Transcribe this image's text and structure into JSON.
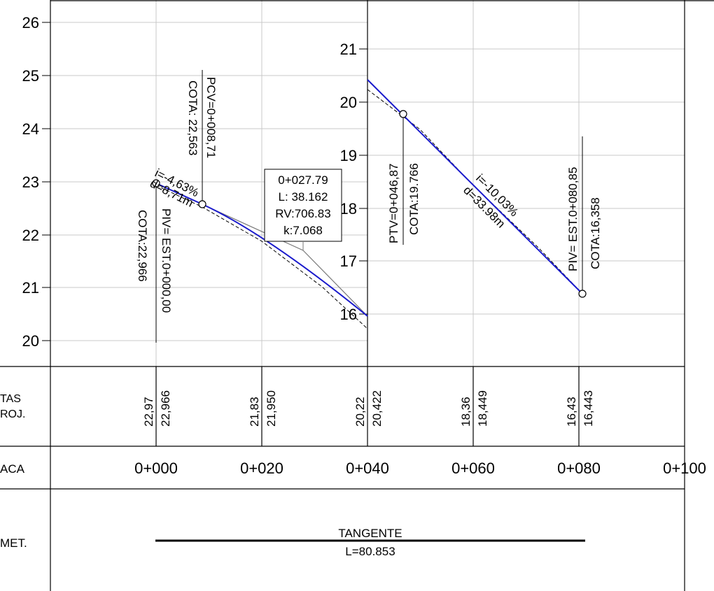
{
  "left_axis": {
    "ticks": [
      "26",
      "25",
      "24",
      "23",
      "22",
      "21",
      "20"
    ]
  },
  "right_axis": {
    "ticks": [
      "21",
      "20",
      "19",
      "18",
      "17",
      "16"
    ]
  },
  "annotations": {
    "pcv_station": "PCV=0+008,71",
    "pcv_cota": "COTA: 22,563",
    "piv_start": "PIV= EST.0+000,00",
    "piv_start_cota": "COTA:22,966",
    "grade_1": "i=-4,63%",
    "dist_1": "d=8,71m",
    "curve_station": "0+027.79",
    "curve_length": "L: 38.162",
    "curve_rv": "RV:706.83",
    "curve_k": "k:7.068",
    "ptv_station": "PTV=0+046,87",
    "ptv_cota": "COTA:19.766",
    "grade_2": "i=-10,03%",
    "dist_2": "d=33.98m",
    "piv_end": "PIV= EST.0+080,85",
    "piv_end_cota": "COTA:16,358"
  },
  "row_labels": {
    "cotas": "TAS",
    "cotas_line2": "ROJ.",
    "estaca": "ACA",
    "alinhamento": "MET."
  },
  "elevations": [
    {
      "terrain": "22,97",
      "project": "22,966"
    },
    {
      "terrain": "21,83",
      "project": "21,950"
    },
    {
      "terrain": "20,22",
      "project": "20,422"
    },
    {
      "terrain": "18,36",
      "project": "18,449"
    },
    {
      "terrain": "16,43",
      "project": "16,443"
    }
  ],
  "stations": [
    "0+000",
    "0+020",
    "0+040",
    "0+060",
    "0+080",
    "0+100"
  ],
  "alignment": {
    "label": "TANGENTE",
    "length": "L=80.853"
  },
  "colors": {
    "profile": "#1a1acc",
    "grid": "#c8c8c8",
    "outline": "#000000",
    "construction": "#7a7a7a"
  }
}
